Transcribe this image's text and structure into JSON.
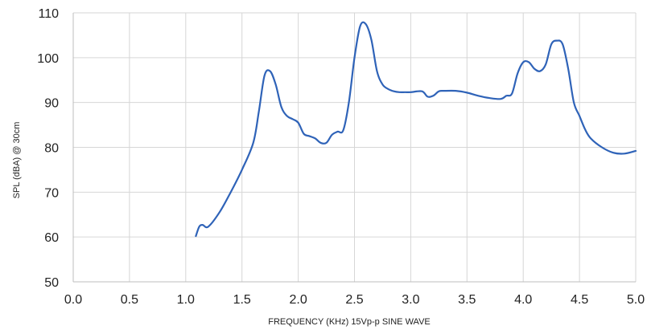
{
  "chart_data": {
    "type": "line",
    "title": "",
    "xlabel": "FREQUENCY (KHz)  15Vp-p SINE WAVE",
    "ylabel": "SPL (dBA) @ 30cm",
    "xlim": [
      0.0,
      5.0
    ],
    "ylim": [
      50,
      110
    ],
    "x_ticks": [
      0.0,
      0.5,
      1.0,
      1.5,
      2.0,
      2.5,
      3.0,
      3.5,
      4.0,
      4.5,
      5.0
    ],
    "x_tick_labels": [
      "0.0",
      "0.5",
      "1.0",
      "1.5",
      "2.0",
      "2.5",
      "3.0",
      "3.5",
      "4.0",
      "4.5",
      "5.0"
    ],
    "y_ticks": [
      50,
      60,
      70,
      80,
      90,
      100,
      110
    ],
    "y_tick_labels": [
      "50",
      "60",
      "70",
      "80",
      "90",
      "100",
      "110"
    ],
    "grid": true,
    "legend": "none",
    "series": [
      {
        "color": "#2f63b8",
        "x": [
          1.09,
          1.12,
          1.15,
          1.2,
          1.3,
          1.4,
          1.5,
          1.6,
          1.65,
          1.7,
          1.75,
          1.8,
          1.85,
          1.9,
          1.95,
          2.0,
          2.05,
          2.1,
          2.15,
          2.2,
          2.25,
          2.3,
          2.35,
          2.4,
          2.45,
          2.5,
          2.55,
          2.6,
          2.65,
          2.7,
          2.75,
          2.8,
          2.85,
          2.9,
          2.95,
          3.0,
          3.1,
          3.15,
          3.2,
          3.25,
          3.3,
          3.4,
          3.5,
          3.6,
          3.7,
          3.8,
          3.85,
          3.9,
          3.95,
          4.0,
          4.05,
          4.1,
          4.15,
          4.2,
          4.25,
          4.3,
          4.35,
          4.4,
          4.45,
          4.5,
          4.55,
          4.6,
          4.7,
          4.8,
          4.9,
          5.0
        ],
        "y": [
          60.2,
          62.3,
          62.7,
          62.3,
          65.5,
          70.0,
          75.0,
          81.0,
          88.0,
          96.0,
          97.0,
          94.0,
          89.0,
          87.0,
          86.3,
          85.5,
          83.0,
          82.5,
          82.0,
          81.0,
          81.0,
          82.8,
          83.5,
          83.8,
          90.0,
          100.0,
          107.0,
          107.5,
          104.0,
          97.0,
          94.0,
          93.0,
          92.5,
          92.3,
          92.3,
          92.3,
          92.5,
          91.3,
          91.5,
          92.5,
          92.6,
          92.6,
          92.2,
          91.5,
          91.0,
          90.8,
          91.5,
          92.0,
          96.5,
          99.0,
          99.0,
          97.5,
          97.0,
          98.5,
          103.0,
          103.8,
          103.0,
          97.5,
          90.0,
          87.0,
          84.0,
          82.0,
          80.0,
          78.8,
          78.6,
          79.2
        ]
      }
    ]
  }
}
